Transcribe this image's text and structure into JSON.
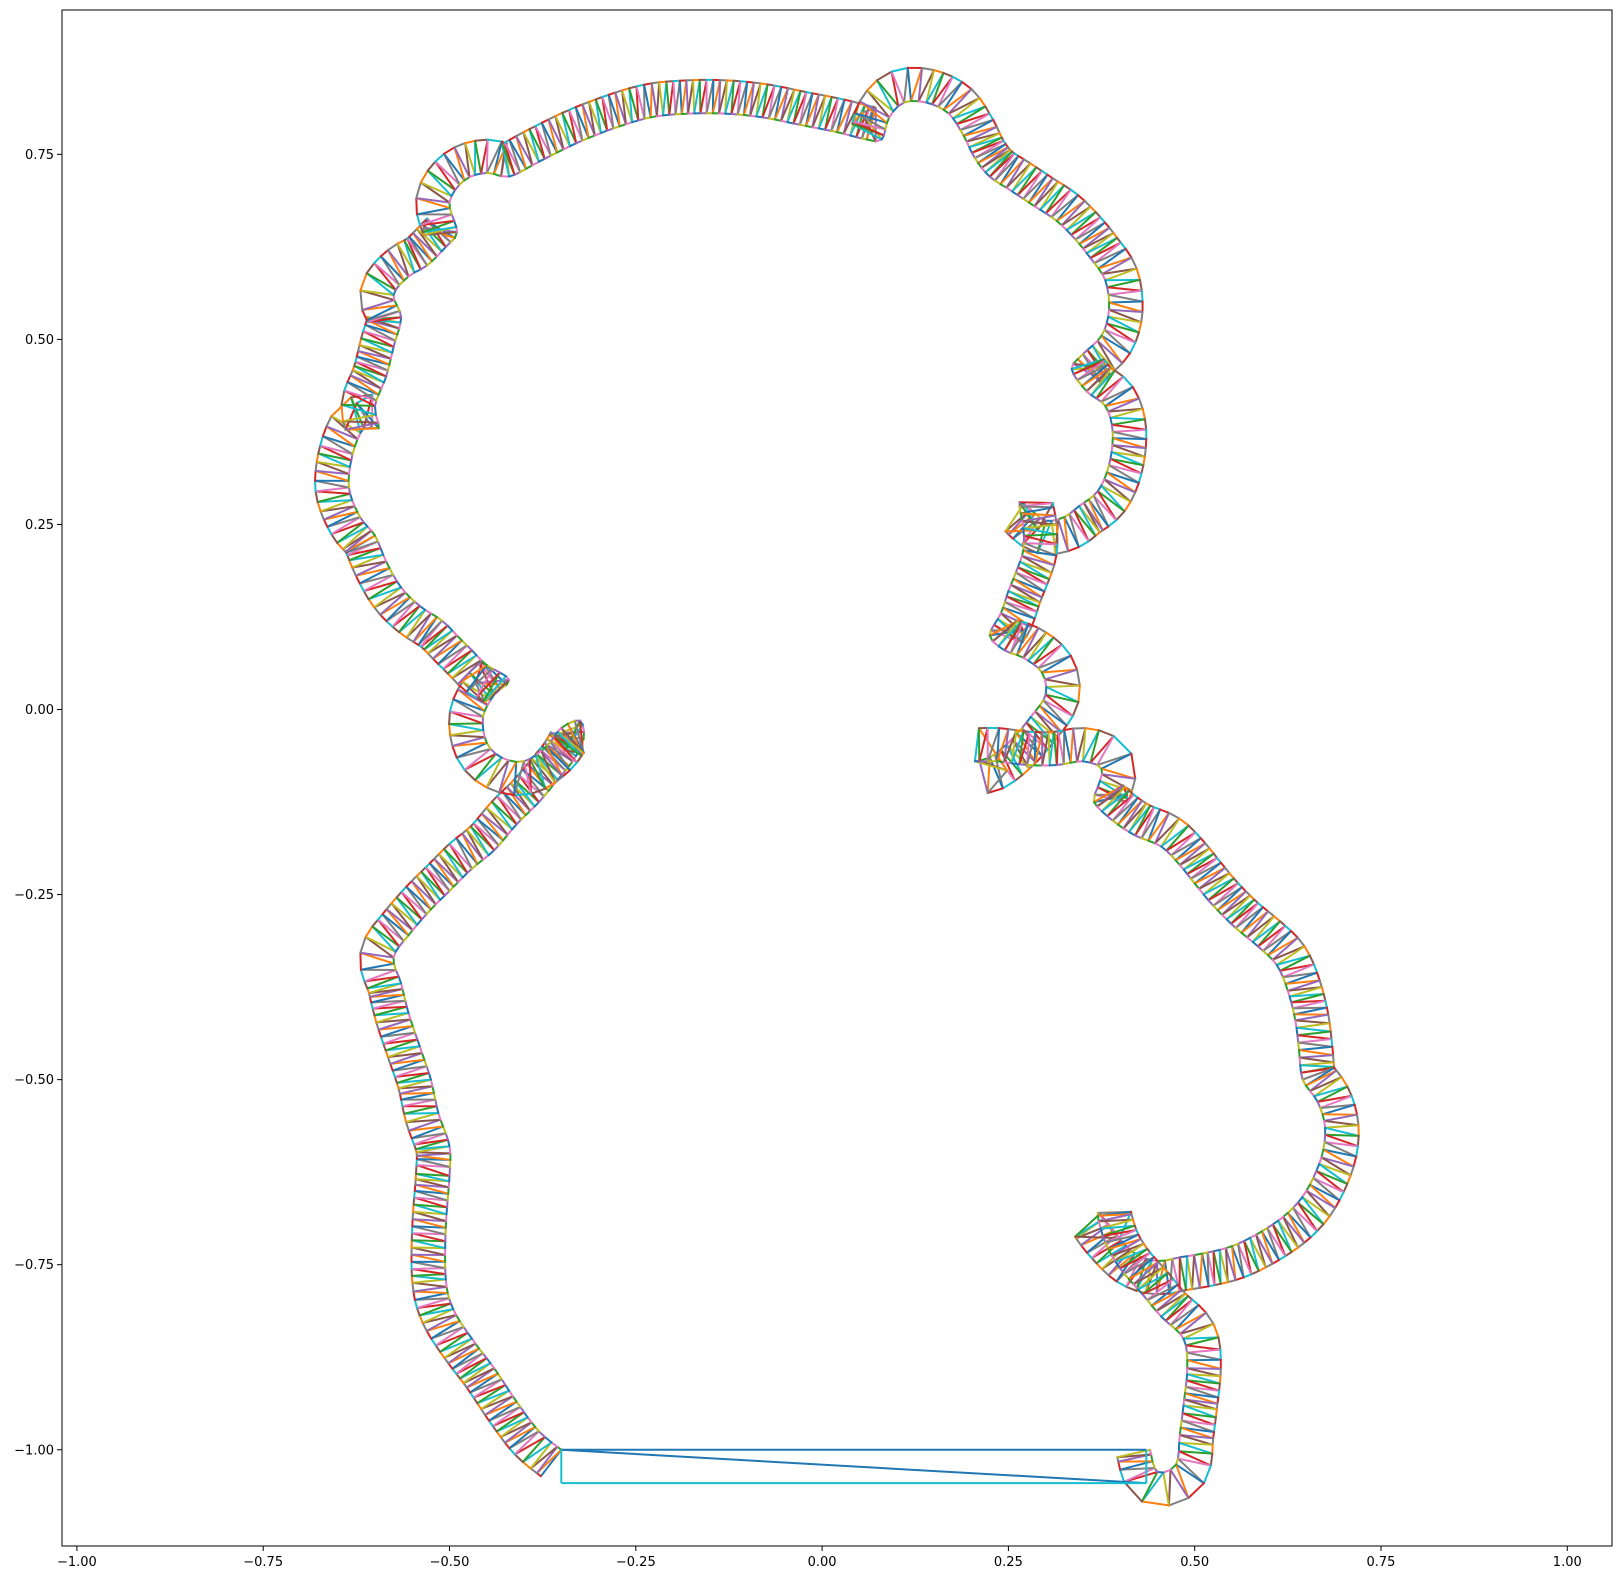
{
  "chart_data": {
    "type": "line",
    "description_free": true,
    "xlim": [
      -1.02,
      1.06
    ],
    "ylim": [
      -1.13,
      0.945
    ],
    "grid": false,
    "legend": "none",
    "x_ticks": [
      {
        "value": -1.0,
        "label": "−1.00"
      },
      {
        "value": -0.75,
        "label": "−0.75"
      },
      {
        "value": -0.5,
        "label": "−0.50"
      },
      {
        "value": -0.25,
        "label": "−0.25"
      },
      {
        "value": 0.0,
        "label": "0.00"
      },
      {
        "value": 0.25,
        "label": "0.25"
      },
      {
        "value": 0.5,
        "label": "0.50"
      },
      {
        "value": 0.75,
        "label": "0.75"
      },
      {
        "value": 1.0,
        "label": "1.00"
      }
    ],
    "y_ticks": [
      {
        "value": 0.75,
        "label": "0.75"
      },
      {
        "value": 0.5,
        "label": "0.50"
      },
      {
        "value": 0.25,
        "label": "0.25"
      },
      {
        "value": 0.0,
        "label": "0.00"
      },
      {
        "value": -0.25,
        "label": "−0.25"
      },
      {
        "value": -0.5,
        "label": "−0.50"
      },
      {
        "value": -0.75,
        "label": "−0.75"
      },
      {
        "value": -1.0,
        "label": "−1.00"
      }
    ],
    "palette": [
      "#1f77b4",
      "#ff7f0e",
      "#2ca02c",
      "#d62728",
      "#9467bd",
      "#8c564b",
      "#e377c2",
      "#7f7f7f",
      "#bcbd22",
      "#17becf"
    ],
    "strip_width": 0.045,
    "outline": [
      [
        -0.35,
        -1.0
      ],
      [
        -0.38,
        -0.975
      ],
      [
        -0.41,
        -0.935
      ],
      [
        -0.44,
        -0.89
      ],
      [
        -0.47,
        -0.85
      ],
      [
        -0.495,
        -0.81
      ],
      [
        -0.505,
        -0.77
      ],
      [
        -0.505,
        -0.7
      ],
      [
        -0.5,
        -0.63
      ],
      [
        -0.5,
        -0.59
      ],
      [
        -0.515,
        -0.545
      ],
      [
        -0.525,
        -0.5
      ],
      [
        -0.54,
        -0.455
      ],
      [
        -0.555,
        -0.41
      ],
      [
        -0.565,
        -0.37
      ],
      [
        -0.575,
        -0.335
      ],
      [
        -0.555,
        -0.305
      ],
      [
        -0.525,
        -0.27
      ],
      [
        -0.5,
        -0.245
      ],
      [
        -0.47,
        -0.215
      ],
      [
        -0.44,
        -0.19
      ],
      [
        -0.41,
        -0.155
      ],
      [
        -0.38,
        -0.125
      ],
      [
        -0.355,
        -0.095
      ],
      [
        -0.335,
        -0.07
      ],
      [
        -0.32,
        -0.04
      ],
      [
        -0.325,
        -0.015
      ],
      [
        -0.35,
        -0.025
      ],
      [
        -0.37,
        -0.05
      ],
      [
        -0.4,
        -0.07
      ],
      [
        -0.43,
        -0.065
      ],
      [
        -0.45,
        -0.045
      ],
      [
        -0.455,
        -0.01
      ],
      [
        -0.44,
        0.02
      ],
      [
        -0.42,
        0.04
      ],
      [
        -0.45,
        0.06
      ],
      [
        -0.47,
        0.08
      ],
      [
        -0.49,
        0.1
      ],
      [
        -0.51,
        0.12
      ],
      [
        -0.54,
        0.14
      ],
      [
        -0.565,
        0.165
      ],
      [
        -0.585,
        0.2
      ],
      [
        -0.6,
        0.235
      ],
      [
        -0.62,
        0.26
      ],
      [
        -0.635,
        0.3
      ],
      [
        -0.63,
        0.345
      ],
      [
        -0.615,
        0.38
      ],
      [
        -0.595,
        0.38
      ],
      [
        -0.6,
        0.41
      ],
      [
        -0.585,
        0.45
      ],
      [
        -0.575,
        0.49
      ],
      [
        -0.565,
        0.53
      ],
      [
        -0.575,
        0.56
      ],
      [
        -0.555,
        0.585
      ],
      [
        -0.53,
        0.6
      ],
      [
        -0.505,
        0.625
      ],
      [
        -0.49,
        0.645
      ],
      [
        -0.5,
        0.685
      ],
      [
        -0.48,
        0.715
      ],
      [
        -0.45,
        0.725
      ],
      [
        -0.42,
        0.72
      ],
      [
        -0.38,
        0.74
      ],
      [
        -0.33,
        0.765
      ],
      [
        -0.28,
        0.785
      ],
      [
        -0.23,
        0.8
      ],
      [
        -0.18,
        0.805
      ],
      [
        -0.13,
        0.805
      ],
      [
        -0.08,
        0.8
      ],
      [
        -0.03,
        0.79
      ],
      [
        0.02,
        0.78
      ],
      [
        0.06,
        0.77
      ],
      [
        0.08,
        0.77
      ],
      [
        0.09,
        0.8
      ],
      [
        0.11,
        0.82
      ],
      [
        0.14,
        0.82
      ],
      [
        0.17,
        0.805
      ],
      [
        0.19,
        0.775
      ],
      [
        0.205,
        0.745
      ],
      [
        0.225,
        0.72
      ],
      [
        0.255,
        0.7
      ],
      [
        0.285,
        0.68
      ],
      [
        0.315,
        0.66
      ],
      [
        0.34,
        0.635
      ],
      [
        0.36,
        0.61
      ],
      [
        0.38,
        0.58
      ],
      [
        0.385,
        0.54
      ],
      [
        0.375,
        0.505
      ],
      [
        0.35,
        0.48
      ],
      [
        0.335,
        0.46
      ],
      [
        0.355,
        0.43
      ],
      [
        0.38,
        0.41
      ],
      [
        0.39,
        0.375
      ],
      [
        0.385,
        0.33
      ],
      [
        0.37,
        0.295
      ],
      [
        0.345,
        0.275
      ],
      [
        0.325,
        0.26
      ],
      [
        0.3,
        0.255
      ],
      [
        0.28,
        0.27
      ],
      [
        0.265,
        0.28
      ],
      [
        0.27,
        0.245
      ],
      [
        0.27,
        0.215
      ],
      [
        0.26,
        0.185
      ],
      [
        0.25,
        0.16
      ],
      [
        0.24,
        0.13
      ],
      [
        0.225,
        0.1
      ],
      [
        0.245,
        0.08
      ],
      [
        0.27,
        0.07
      ],
      [
        0.295,
        0.05
      ],
      [
        0.3,
        0.02
      ],
      [
        0.28,
        -0.01
      ],
      [
        0.255,
        -0.04
      ],
      [
        0.225,
        -0.065
      ],
      [
        0.205,
        -0.07
      ],
      [
        0.235,
        -0.07
      ],
      [
        0.275,
        -0.075
      ],
      [
        0.315,
        -0.075
      ],
      [
        0.35,
        -0.07
      ],
      [
        0.375,
        -0.08
      ],
      [
        0.37,
        -0.105
      ],
      [
        0.365,
        -0.125
      ],
      [
        0.39,
        -0.15
      ],
      [
        0.42,
        -0.17
      ],
      [
        0.455,
        -0.185
      ],
      [
        0.48,
        -0.21
      ],
      [
        0.5,
        -0.235
      ],
      [
        0.525,
        -0.265
      ],
      [
        0.555,
        -0.295
      ],
      [
        0.585,
        -0.32
      ],
      [
        0.61,
        -0.345
      ],
      [
        0.625,
        -0.38
      ],
      [
        0.635,
        -0.42
      ],
      [
        0.64,
        -0.46
      ],
      [
        0.645,
        -0.5
      ],
      [
        0.665,
        -0.53
      ],
      [
        0.675,
        -0.565
      ],
      [
        0.67,
        -0.605
      ],
      [
        0.65,
        -0.65
      ],
      [
        0.625,
        -0.68
      ],
      [
        0.59,
        -0.705
      ],
      [
        0.55,
        -0.725
      ],
      [
        0.51,
        -0.735
      ],
      [
        0.48,
        -0.74
      ],
      [
        0.45,
        -0.745
      ],
      [
        0.42,
        -0.735
      ],
      [
        0.39,
        -0.705
      ],
      [
        0.37,
        -0.68
      ],
      [
        0.38,
        -0.72
      ],
      [
        0.4,
        -0.755
      ],
      [
        0.43,
        -0.79
      ],
      [
        0.455,
        -0.82
      ],
      [
        0.485,
        -0.85
      ],
      [
        0.49,
        -0.89
      ],
      [
        0.485,
        -0.94
      ],
      [
        0.48,
        -0.98
      ],
      [
        0.475,
        -1.02
      ],
      [
        0.45,
        -1.03
      ],
      [
        0.44,
        -1.0
      ]
    ],
    "closing_lines": [
      {
        "from": [
          -0.35,
          -1.0
        ],
        "to": [
          0.435,
          -1.0
        ],
        "color": "#1f77b4"
      },
      {
        "from": [
          -0.35,
          -1.0
        ],
        "to": [
          0.435,
          -1.045
        ],
        "color": "#1f77b4"
      },
      {
        "from": [
          -0.35,
          -1.045
        ],
        "to": [
          0.435,
          -1.045
        ],
        "color": "#17becf"
      },
      {
        "from": [
          -0.35,
          -1.0
        ],
        "to": [
          -0.35,
          -1.045
        ],
        "color": "#17becf"
      },
      {
        "from": [
          0.435,
          -1.0
        ],
        "to": [
          0.435,
          -1.045
        ],
        "color": "#17becf"
      }
    ]
  }
}
